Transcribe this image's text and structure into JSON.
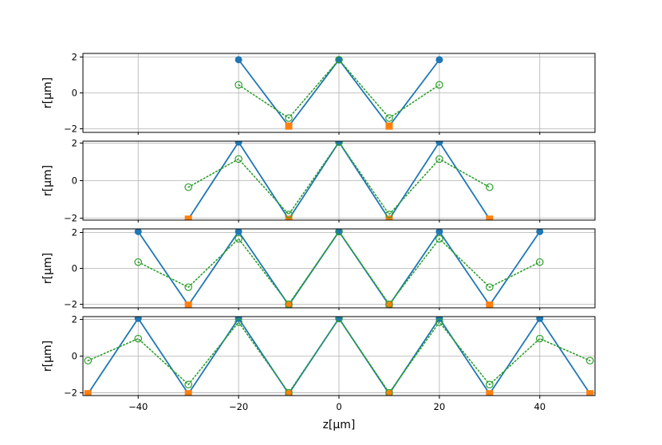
{
  "chart_data": {
    "type": "line",
    "xlabel": "z[μm]",
    "ylabel": "r[μm]",
    "grid": true,
    "xlim": [
      -51,
      51
    ],
    "xticks": [
      -40,
      -20,
      0,
      20,
      40
    ],
    "xtick_labels": [
      "−40",
      "−20",
      "0",
      "20",
      "40"
    ],
    "yticks": [
      -2,
      0,
      2
    ],
    "ytick_labels": [
      "−2",
      "0",
      "2"
    ],
    "colors": {
      "line": "#1f77b4",
      "orange": "#ff7f0e",
      "green": "#2ca02c",
      "grid": "#b0b0b0"
    },
    "panels": [
      {
        "ylim": [
          -2.2,
          2.2
        ],
        "x": [
          -20,
          -10,
          0,
          10,
          20
        ],
        "line": [
          1.85,
          -1.85,
          1.85,
          -1.85,
          1.85
        ],
        "green": [
          0.45,
          -1.4,
          1.85,
          -1.4,
          0.45
        ],
        "blue_points_x": [
          -20,
          0,
          20
        ],
        "orange_points_x": [
          -10,
          10
        ]
      },
      {
        "ylim": [
          -2.1,
          2.1
        ],
        "x": [
          -30,
          -20,
          -10,
          0,
          10,
          20,
          30
        ],
        "line": [
          -2.05,
          2.05,
          -2.05,
          2.05,
          -2.05,
          2.05,
          -2.05
        ],
        "green": [
          -0.35,
          1.15,
          -1.8,
          2.05,
          -1.8,
          1.15,
          -0.35
        ],
        "blue_points_x": [
          -20,
          0,
          20
        ],
        "orange_points_x": [
          -30,
          -10,
          10,
          30
        ]
      },
      {
        "ylim": [
          -2.2,
          2.2
        ],
        "x": [
          -40,
          -30,
          -20,
          -10,
          0,
          10,
          20,
          30,
          40
        ],
        "line": [
          2.05,
          -2.05,
          2.05,
          -2.05,
          2.05,
          -2.05,
          2.05,
          -2.05,
          2.05
        ],
        "green": [
          0.35,
          -1.05,
          1.65,
          -2.0,
          2.05,
          -2.0,
          1.65,
          -1.05,
          0.35
        ],
        "blue_points_x": [
          -40,
          -20,
          0,
          20,
          40
        ],
        "orange_points_x": [
          -30,
          -10,
          10,
          30
        ]
      },
      {
        "ylim": [
          -2.15,
          2.15
        ],
        "x": [
          -50,
          -40,
          -30,
          -20,
          -10,
          0,
          10,
          20,
          30,
          40,
          50
        ],
        "line": [
          -2.05,
          2.05,
          -2.05,
          2.05,
          -2.05,
          2.05,
          -2.05,
          2.05,
          -2.05,
          2.05,
          -2.05
        ],
        "green": [
          -0.25,
          0.95,
          -1.55,
          1.85,
          -2.0,
          2.05,
          -2.0,
          1.85,
          -1.55,
          0.95,
          -0.25
        ],
        "blue_points_x": [
          -40,
          -20,
          0,
          20,
          40
        ],
        "orange_points_x": [
          -50,
          -30,
          -10,
          10,
          30,
          50
        ]
      }
    ]
  }
}
